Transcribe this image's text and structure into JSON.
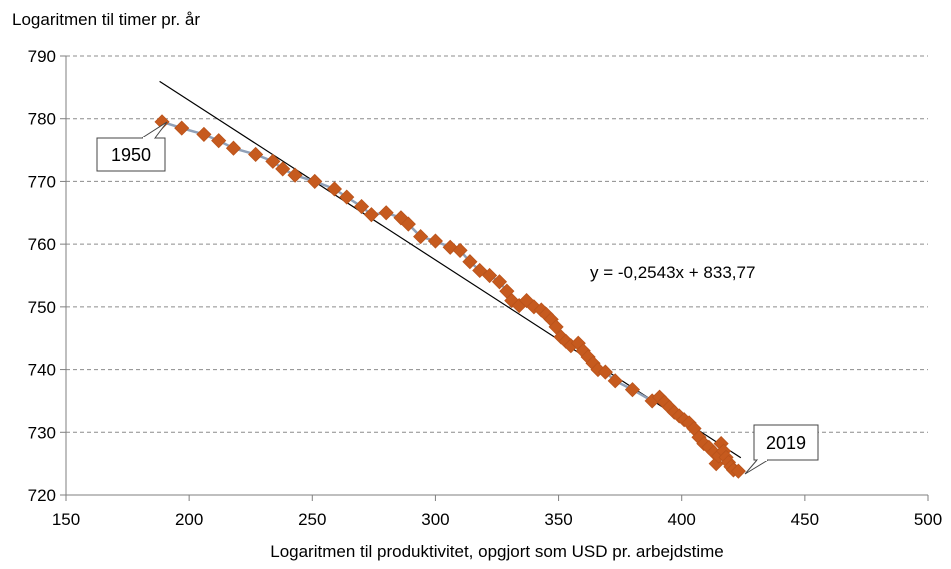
{
  "chart_data": {
    "type": "scatter",
    "title": "",
    "xlabel": "Logaritmen til produktivitet, opgjort som USD pr. arbejdstime",
    "ylabel": "Logaritmen til timer pr. år",
    "xlim": [
      150,
      500
    ],
    "ylim": [
      720,
      790
    ],
    "xticks": [
      150,
      200,
      250,
      300,
      350,
      400,
      450,
      500
    ],
    "yticks": [
      720,
      730,
      740,
      750,
      760,
      770,
      780,
      790
    ],
    "grid": "horizontal dashed",
    "legend": "none",
    "series": [
      {
        "marker": "diamond",
        "color": "#C65A1E",
        "line_color": "#8FA0B8",
        "x": [
          189,
          197,
          206,
          212,
          218,
          227,
          234,
          238,
          243,
          251,
          259,
          264,
          270,
          274,
          280,
          286,
          289,
          294,
          300,
          306,
          310,
          314,
          318,
          322,
          326,
          329,
          331,
          334,
          337,
          340,
          343,
          345,
          347,
          349,
          351,
          353,
          355,
          358,
          360,
          362,
          364,
          366,
          369,
          373,
          380,
          388,
          391,
          393,
          395,
          397,
          399,
          401,
          403,
          405,
          407,
          409,
          411,
          413,
          414,
          415,
          416,
          417,
          418,
          419,
          420,
          421,
          423
        ],
        "y": [
          779.5,
          778.5,
          777.5,
          776.5,
          775.3,
          774.3,
          773.2,
          772.0,
          771.0,
          770.0,
          768.8,
          767.5,
          766.0,
          764.7,
          765.0,
          764.2,
          763.2,
          761.2,
          760.5,
          759.5,
          759.0,
          757.2,
          755.8,
          755.0,
          754.0,
          752.5,
          751.0,
          750.2,
          751.0,
          750.0,
          749.5,
          748.8,
          748.0,
          746.8,
          745.2,
          744.5,
          743.8,
          744.2,
          743.0,
          742.0,
          741.0,
          740.0,
          739.6,
          738.2,
          736.8,
          735.0,
          735.6,
          734.8,
          734.0,
          733.2,
          732.6,
          732.0,
          731.5,
          730.6,
          729.2,
          728.2,
          727.6,
          726.8,
          725.0,
          726.2,
          728.2,
          727.0,
          726.0,
          725.2,
          724.5,
          724.0,
          723.8
        ]
      }
    ],
    "trendline": {
      "x_start": 188,
      "x_end": 424,
      "slope": -0.2543,
      "intercept": 833.77
    },
    "annotations": {
      "equation": "y = -0,2543x + 833,77",
      "label_start": "1950",
      "label_end": "2019"
    }
  }
}
